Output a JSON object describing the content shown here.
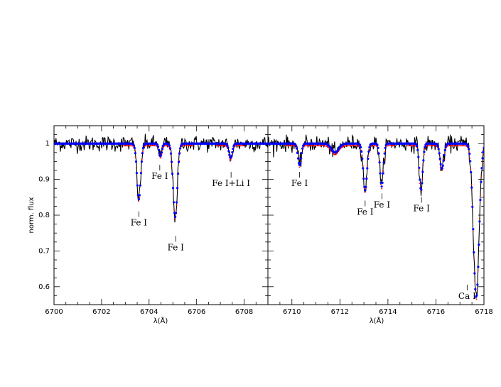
{
  "chart_data": [
    {
      "type": "line",
      "title": "",
      "xlabel": "λ(Å)",
      "ylabel": "norm. flux",
      "xlim": [
        6700,
        6709
      ],
      "ylim": [
        0.55,
        1.05
      ],
      "xticks": [
        6700,
        6702,
        6704,
        6706,
        6708
      ],
      "yticks": [
        0.6,
        0.7,
        0.8,
        0.9,
        1
      ],
      "grid": false,
      "continuum": 1.0,
      "series": [
        {
          "style": "observed",
          "color": "#000000"
        },
        {
          "style": "model-1",
          "color": "#0000ff"
        },
        {
          "style": "model-2",
          "color": "#ff0000"
        }
      ],
      "lines": [
        {
          "center": 6703.57,
          "depth": 0.155,
          "width": 0.08
        },
        {
          "center": 6704.48,
          "depth": 0.035,
          "width": 0.06
        },
        {
          "center": 6705.1,
          "depth": 0.205,
          "width": 0.09
        },
        {
          "center": 6707.43,
          "depth": 0.04,
          "width": 0.07
        }
      ],
      "annotations": [
        {
          "text": "Fe I",
          "x": 6704.45,
          "y": 0.905
        },
        {
          "text": "Fe I",
          "x": 6703.57,
          "y": 0.775
        },
        {
          "text": "Fe I",
          "x": 6705.12,
          "y": 0.706
        },
        {
          "text": "Fe I+Li I",
          "x": 6707.45,
          "y": 0.885
        }
      ]
    },
    {
      "type": "line",
      "title": "",
      "xlabel": "λ(Å)",
      "ylabel": "",
      "xlim": [
        6709,
        6718
      ],
      "ylim": [
        0.55,
        1.05
      ],
      "xticks": [
        6710,
        6712,
        6714,
        6716,
        6718
      ],
      "yticks": [
        0.6,
        0.7,
        0.8,
        0.9,
        1
      ],
      "grid": false,
      "continuum": 1.0,
      "series": [
        {
          "style": "observed",
          "color": "#000000"
        },
        {
          "style": "model-1",
          "color": "#0000ff"
        },
        {
          "style": "model-2",
          "color": "#ff0000"
        }
      ],
      "lines": [
        {
          "center": 6710.32,
          "depth": 0.06,
          "width": 0.07
        },
        {
          "center": 6711.8,
          "depth": 0.025,
          "width": 0.15
        },
        {
          "center": 6713.05,
          "depth": 0.13,
          "width": 0.08
        },
        {
          "center": 6713.74,
          "depth": 0.12,
          "width": 0.07
        },
        {
          "center": 6715.38,
          "depth": 0.13,
          "width": 0.07
        },
        {
          "center": 6716.25,
          "depth": 0.07,
          "width": 0.08
        },
        {
          "center": 6717.68,
          "depth": 0.43,
          "width": 0.12
        }
      ],
      "annotations": [
        {
          "text": "Fe I",
          "x": 6710.32,
          "y": 0.885
        },
        {
          "text": "Fe I",
          "x": 6713.05,
          "y": 0.805
        },
        {
          "text": "Fe I",
          "x": 6713.75,
          "y": 0.825
        },
        {
          "text": "Fe I",
          "x": 6715.4,
          "y": 0.815
        },
        {
          "text": "Ca I",
          "x": 6717.3,
          "y": 0.57
        }
      ]
    }
  ]
}
